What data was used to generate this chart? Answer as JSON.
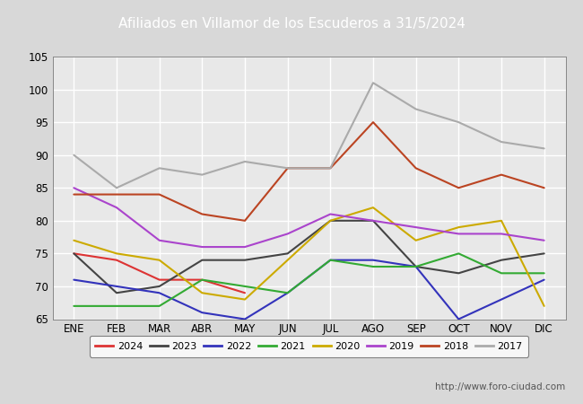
{
  "title": "Afiliados en Villamor de los Escuderos a 31/5/2024",
  "title_bg_color": "#5b8dd9",
  "title_text_color": "#ffffff",
  "watermark": "http://www.foro-ciudad.com",
  "ylim": [
    65,
    105
  ],
  "yticks": [
    65,
    70,
    75,
    80,
    85,
    90,
    95,
    100,
    105
  ],
  "months": [
    "ENE",
    "FEB",
    "MAR",
    "ABR",
    "MAY",
    "JUN",
    "JUL",
    "AGO",
    "SEP",
    "OCT",
    "NOV",
    "DIC"
  ],
  "series": {
    "2024": {
      "color": "#dd3333",
      "data": [
        75,
        74,
        71,
        71,
        69,
        null,
        null,
        null,
        null,
        null,
        null,
        null
      ]
    },
    "2023": {
      "color": "#444444",
      "data": [
        75,
        69,
        70,
        74,
        74,
        75,
        80,
        80,
        73,
        72,
        74,
        75
      ]
    },
    "2022": {
      "color": "#3333bb",
      "data": [
        71,
        70,
        69,
        66,
        65,
        69,
        74,
        74,
        73,
        65,
        68,
        71
      ]
    },
    "2021": {
      "color": "#33aa33",
      "data": [
        67,
        67,
        67,
        71,
        70,
        69,
        74,
        73,
        73,
        75,
        72,
        72
      ]
    },
    "2020": {
      "color": "#ccaa00",
      "data": [
        77,
        75,
        74,
        69,
        68,
        74,
        80,
        82,
        77,
        79,
        80,
        67
      ]
    },
    "2019": {
      "color": "#aa44cc",
      "data": [
        85,
        82,
        77,
        76,
        76,
        78,
        81,
        80,
        79,
        78,
        78,
        77
      ]
    },
    "2018": {
      "color": "#bb4422",
      "data": [
        84,
        84,
        84,
        81,
        80,
        88,
        88,
        95,
        88,
        85,
        87,
        85
      ]
    },
    "2017": {
      "color": "#aaaaaa",
      "data": [
        90,
        85,
        88,
        87,
        89,
        88,
        88,
        101,
        97,
        95,
        92,
        91
      ]
    }
  },
  "fig_bg_color": "#d8d8d8",
  "plot_bg_color": "#e8e8e8",
  "grid_color": "#ffffff",
  "linewidth": 1.5,
  "legend_order": [
    "2024",
    "2023",
    "2022",
    "2021",
    "2020",
    "2019",
    "2018",
    "2017"
  ]
}
